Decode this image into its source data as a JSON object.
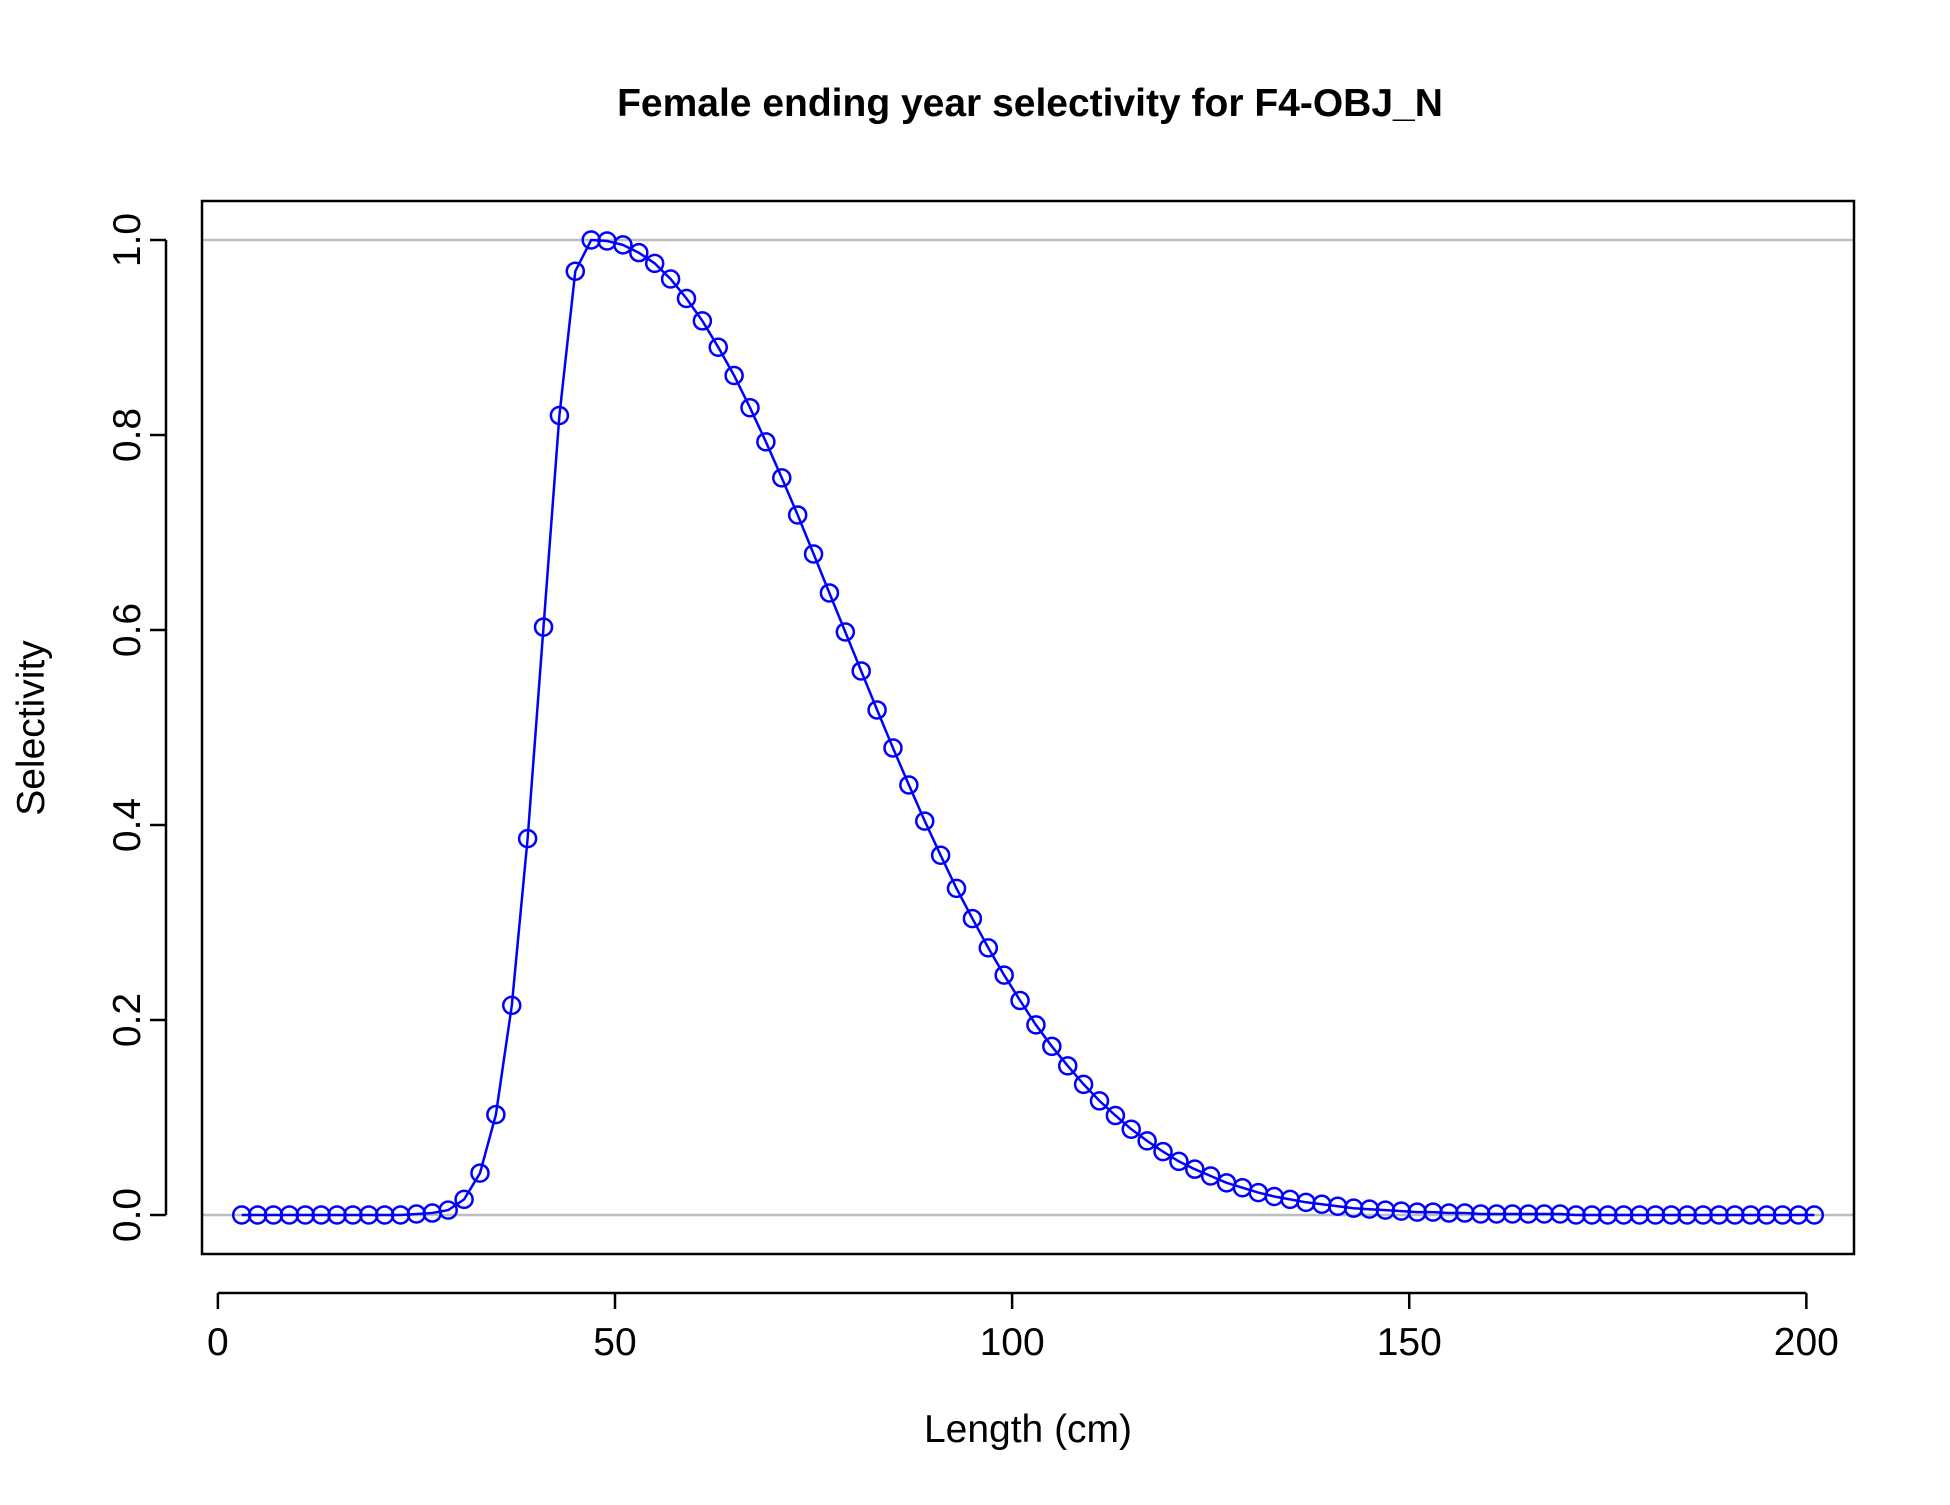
{
  "chart_data": {
    "type": "line",
    "title": "Female ending year selectivity for F4-OBJ_N",
    "xlabel": "Length (cm)",
    "ylabel": "Selectivity",
    "xlim": [
      -2,
      206
    ],
    "ylim": [
      -0.04,
      1.04
    ],
    "x_ticks": [
      0,
      50,
      100,
      150,
      200
    ],
    "y_ticks": [
      0.0,
      0.2,
      0.4,
      0.6,
      0.8,
      1.0
    ],
    "x_tick_labels": [
      "0",
      "50",
      "100",
      "150",
      "200"
    ],
    "y_tick_labels": [
      "0.0",
      "0.2",
      "0.4",
      "0.6",
      "0.8",
      "1.0"
    ],
    "reference_lines_y": [
      0,
      1
    ],
    "grid": false,
    "colors": {
      "series": "#0000ff",
      "reference": "#bebebe",
      "axes": "#000000"
    },
    "series": [
      {
        "marker": "open-circle",
        "x": [
          3,
          5,
          7,
          9,
          11,
          13,
          15,
          17,
          19,
          21,
          23,
          25,
          27,
          29,
          31,
          33,
          35,
          37,
          39,
          41,
          43,
          45,
          47,
          49,
          51,
          53,
          55,
          57,
          59,
          61,
          63,
          65,
          67,
          69,
          71,
          73,
          75,
          77,
          79,
          81,
          83,
          85,
          87,
          89,
          91,
          93,
          95,
          97,
          99,
          101,
          103,
          105,
          107,
          109,
          111,
          113,
          115,
          117,
          119,
          121,
          123,
          125,
          127,
          129,
          131,
          133,
          135,
          137,
          139,
          141,
          143,
          145,
          147,
          149,
          151,
          153,
          155,
          157,
          159,
          161,
          163,
          165,
          167,
          169,
          171,
          173,
          175,
          177,
          179,
          181,
          183,
          185,
          187,
          189,
          191,
          193,
          195,
          197,
          199,
          201
        ],
        "y": [
          0,
          0,
          0,
          0,
          0,
          0,
          0,
          0,
          0,
          0,
          0,
          0.001,
          0.002,
          0.005,
          0.016,
          0.043,
          0.103,
          0.215,
          0.386,
          0.603,
          0.82,
          0.968,
          1.0,
          0.999,
          0.995,
          0.987,
          0.976,
          0.96,
          0.94,
          0.917,
          0.89,
          0.861,
          0.828,
          0.793,
          0.756,
          0.718,
          0.678,
          0.638,
          0.598,
          0.558,
          0.518,
          0.479,
          0.441,
          0.404,
          0.369,
          0.335,
          0.304,
          0.274,
          0.246,
          0.22,
          0.195,
          0.173,
          0.153,
          0.134,
          0.117,
          0.102,
          0.088,
          0.076,
          0.065,
          0.055,
          0.047,
          0.04,
          0.033,
          0.028,
          0.023,
          0.019,
          0.016,
          0.013,
          0.011,
          0.009,
          0.007,
          0.006,
          0.005,
          0.004,
          0.003,
          0.003,
          0.002,
          0.002,
          0.001,
          0.001,
          0.001,
          0.001,
          0.001,
          0.001,
          0,
          0,
          0,
          0,
          0,
          0,
          0,
          0,
          0,
          0,
          0,
          0,
          0,
          0,
          0,
          0
        ]
      }
    ]
  }
}
